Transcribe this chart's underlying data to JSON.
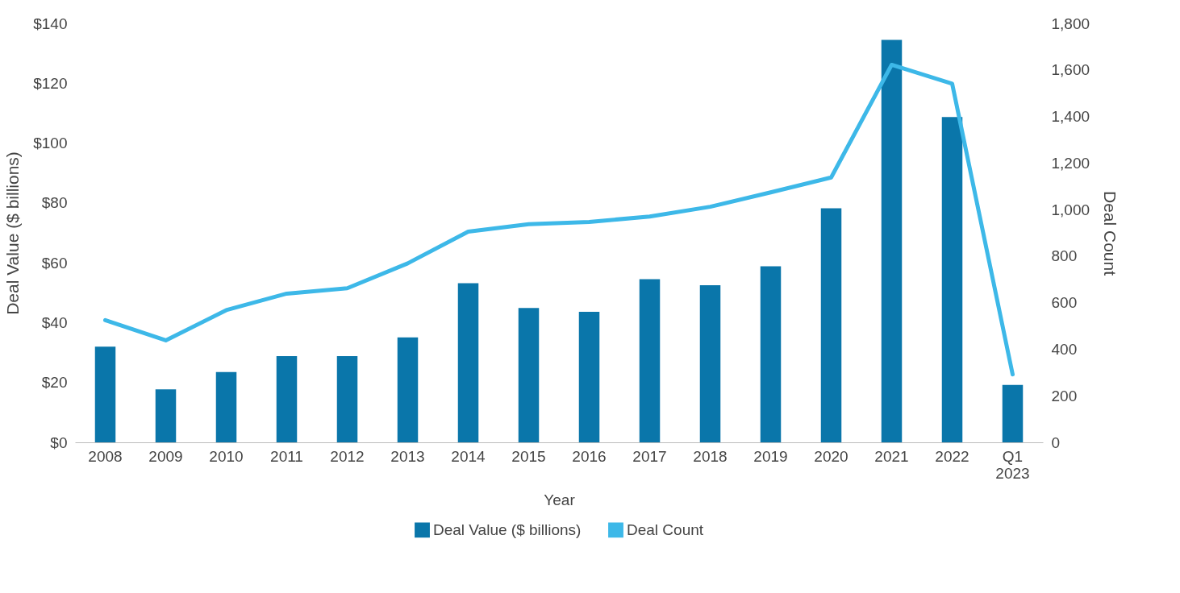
{
  "chart_data": {
    "type": "bar",
    "xlabel": "Year",
    "ylabel": "Deal Value ($ billions)",
    "y2label": "Deal Count",
    "categories": [
      "2008",
      "2009",
      "2010",
      "2011",
      "2012",
      "2013",
      "2014",
      "2015",
      "2016",
      "2017",
      "2018",
      "2019",
      "2020",
      "2021",
      "2022",
      "Q1 2023"
    ],
    "series": [
      {
        "name": "Deal Value ($ billions)",
        "color": "#0a76aa",
        "values": [
          32.0,
          17.7,
          23.5,
          28.8,
          28.8,
          35.1,
          53.2,
          44.9,
          43.6,
          54.5,
          52.5,
          58.8,
          78.2,
          134.5,
          108.7,
          19.2
        ]
      },
      {
        "name": "Deal Count",
        "type": "line",
        "axis": "y2",
        "color": "#3db8e8",
        "values": [
          525,
          438,
          568,
          639,
          662,
          769,
          905,
          937,
          947,
          970,
          1012,
          1074,
          1138,
          1622,
          1541,
          292
        ]
      }
    ],
    "ylim": [
      0,
      140
    ],
    "yticks": [
      {
        "value": 0,
        "label": "$0"
      },
      {
        "value": 20,
        "label": "$20"
      },
      {
        "value": 40,
        "label": "$40"
      },
      {
        "value": 60,
        "label": "$60"
      },
      {
        "value": 80,
        "label": "$80"
      },
      {
        "value": 100,
        "label": "$100"
      },
      {
        "value": 120,
        "label": "$120"
      },
      {
        "value": 140,
        "label": "$140"
      }
    ],
    "y2lim": [
      0,
      1800
    ],
    "y2ticks": [
      0,
      200,
      400,
      600,
      800,
      {
        "value": 1000,
        "label": "1,000"
      },
      {
        "value": 1200,
        "label": "1,200"
      },
      {
        "value": 1400,
        "label": "1,400"
      },
      {
        "value": 1600,
        "label": "1,600"
      },
      {
        "value": 1800,
        "label": "1,800"
      }
    ],
    "grid": false,
    "legend": "bottom",
    "line_style": "solid",
    "marker": "none"
  }
}
